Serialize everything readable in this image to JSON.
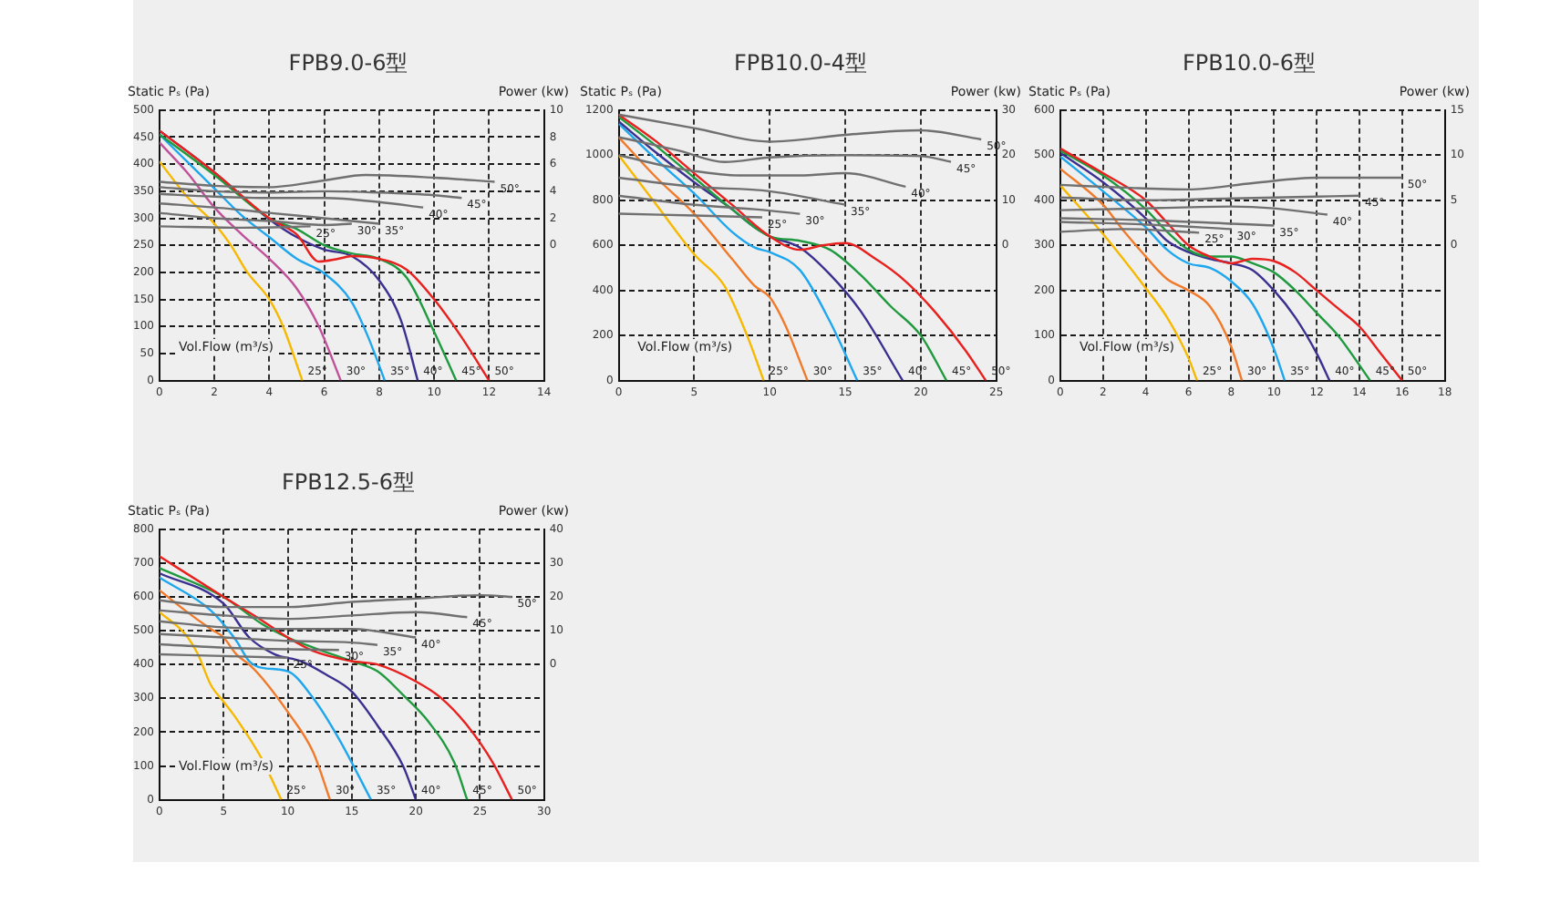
{
  "chart_data": [
    {
      "type": "line",
      "title": "FPB9.0-6型",
      "xlabel": "Vol.Flow (m³/s)",
      "ylabel": "Static Pₛ (Pa)",
      "y2label": "Power (kw)",
      "xlim": [
        0,
        14
      ],
      "xticks": [
        0,
        2,
        4,
        6,
        8,
        10,
        12,
        14
      ],
      "ylim": [
        0,
        500
      ],
      "yticks": [
        0,
        50,
        100,
        150,
        200,
        250,
        300,
        350,
        400,
        450,
        500
      ],
      "y2lim": [
        -10,
        10
      ],
      "y2ticks": [
        0,
        2,
        4,
        6,
        8,
        10
      ],
      "grid": true,
      "series": [
        {
          "name": "25°",
          "color": "#f7b800",
          "x": [
            0,
            1,
            2,
            2.6,
            3.2,
            4,
            4.5,
            5.2
          ],
          "values": [
            405,
            340,
            290,
            250,
            200,
            150,
            100,
            0
          ]
        },
        {
          "name": "30°",
          "color": "#c0509a",
          "x": [
            0,
            1,
            2,
            3,
            4,
            5,
            5.8,
            6.6
          ],
          "values": [
            440,
            385,
            320,
            270,
            225,
            170,
            100,
            0
          ]
        },
        {
          "name": "35°",
          "color": "#1ea6ee",
          "x": [
            0,
            1,
            2,
            3,
            4,
            5,
            6,
            7,
            7.6,
            8.2
          ],
          "values": [
            455,
            405,
            355,
            305,
            265,
            225,
            198,
            145,
            80,
            0
          ]
        },
        {
          "name": "40°",
          "color": "#3a3090",
          "x": [
            0,
            2,
            4,
            5,
            6,
            7,
            8,
            8.8,
            9.4
          ],
          "values": [
            462,
            385,
            298,
            265,
            242,
            230,
            185,
            110,
            0
          ]
        },
        {
          "name": "45°",
          "color": "#1f9a3f",
          "x": [
            0,
            2,
            4,
            5,
            6,
            7,
            8,
            9,
            10,
            10.8
          ],
          "values": [
            455,
            380,
            300,
            280,
            250,
            235,
            225,
            190,
            90,
            0
          ]
        },
        {
          "name": "50°",
          "color": "#e8201e",
          "x": [
            0,
            2,
            4,
            5,
            5.8,
            6.5,
            7,
            8,
            9,
            10,
            11,
            12
          ],
          "values": [
            462,
            385,
            300,
            270,
            220,
            225,
            230,
            225,
            205,
            150,
            80,
            0
          ]
        },
        {
          "name": "25°",
          "color": "#707070",
          "axis": "y2",
          "x": [
            0,
            3,
            5.5
          ],
          "values": [
            1.4,
            1.3,
            1.4
          ]
        },
        {
          "name": "30°",
          "color": "#707070",
          "axis": "y2",
          "x": [
            0,
            2,
            4,
            6,
            7
          ],
          "values": [
            2.4,
            2.0,
            1.8,
            1.5,
            1.6
          ]
        },
        {
          "name": "35°",
          "color": "#707070",
          "axis": "y2",
          "x": [
            0,
            2,
            4,
            6,
            8
          ],
          "values": [
            3.1,
            2.8,
            2.4,
            2.0,
            1.6
          ]
        },
        {
          "name": "40°",
          "color": "#707070",
          "axis": "y2",
          "x": [
            0,
            2,
            4,
            6,
            8,
            9.6
          ],
          "values": [
            3.8,
            3.6,
            3.5,
            3.5,
            3.2,
            2.8
          ]
        },
        {
          "name": "45°",
          "color": "#707070",
          "axis": "y2",
          "x": [
            0,
            2,
            4,
            6,
            8,
            10,
            11
          ],
          "values": [
            4.3,
            4.0,
            3.9,
            4.0,
            3.9,
            3.7,
            3.5
          ]
        },
        {
          "name": "50°",
          "color": "#707070",
          "axis": "y2",
          "x": [
            0,
            2,
            4,
            6,
            7.5,
            10,
            12.2
          ],
          "values": [
            4.7,
            4.4,
            4.3,
            4.8,
            5.2,
            5.0,
            4.7
          ]
        }
      ]
    },
    {
      "type": "line",
      "title": "FPB10.0-4型",
      "xlabel": "Vol.Flow (m³/s)",
      "ylabel": "Static Pₛ (Pa)",
      "y2label": "Power (kw)",
      "xlim": [
        0,
        25
      ],
      "xticks": [
        0,
        5,
        10,
        15,
        20,
        25
      ],
      "ylim": [
        0,
        1200
      ],
      "yticks": [
        0,
        200,
        400,
        600,
        800,
        1000,
        1200
      ],
      "y2lim": [
        -30,
        30
      ],
      "y2ticks": [
        0,
        10,
        20,
        30
      ],
      "grid": true,
      "series": [
        {
          "name": "25°",
          "color": "#f7b800",
          "x": [
            0,
            2.5,
            5,
            7,
            8.5,
            9.6
          ],
          "values": [
            1000,
            780,
            560,
            420,
            200,
            0
          ]
        },
        {
          "name": "30°",
          "color": "#f07a2a",
          "x": [
            0,
            2.5,
            5,
            7.5,
            9,
            10,
            11,
            12.5
          ],
          "values": [
            1080,
            900,
            740,
            540,
            420,
            370,
            250,
            0
          ]
        },
        {
          "name": "35°",
          "color": "#1ea6ee",
          "x": [
            0,
            2.5,
            5,
            7.5,
            9,
            10,
            12,
            14,
            15.8
          ],
          "values": [
            1140,
            980,
            830,
            660,
            590,
            570,
            490,
            260,
            0
          ]
        },
        {
          "name": "40°",
          "color": "#3a3090",
          "x": [
            0,
            2.5,
            5,
            7.5,
            9,
            10,
            12,
            14,
            16,
            18.8
          ],
          "values": [
            1150,
            1010,
            880,
            760,
            680,
            640,
            590,
            470,
            310,
            0
          ]
        },
        {
          "name": "45°",
          "color": "#1f9a3f",
          "x": [
            0,
            2.5,
            5,
            7.5,
            10,
            12,
            14,
            16,
            18,
            20,
            21.7
          ],
          "values": [
            1170,
            1040,
            900,
            760,
            640,
            620,
            580,
            470,
            330,
            200,
            0
          ]
        },
        {
          "name": "50°",
          "color": "#e8201e",
          "x": [
            0,
            2.5,
            5,
            7.5,
            10,
            12,
            13.5,
            15,
            17,
            19,
            21,
            23,
            24.3
          ],
          "values": [
            1180,
            1060,
            920,
            780,
            640,
            580,
            600,
            610,
            540,
            440,
            300,
            130,
            0
          ]
        },
        {
          "name": "25°",
          "color": "#707070",
          "axis": "y2",
          "x": [
            0,
            5,
            9.5
          ],
          "values": [
            7,
            6.6,
            6.2
          ]
        },
        {
          "name": "30°",
          "color": "#707070",
          "axis": "y2",
          "x": [
            0,
            5,
            9,
            12
          ],
          "values": [
            11,
            9,
            8,
            7
          ]
        },
        {
          "name": "35°",
          "color": "#707070",
          "axis": "y2",
          "x": [
            0,
            5,
            10,
            15
          ],
          "values": [
            15,
            13,
            12,
            9
          ]
        },
        {
          "name": "40°",
          "color": "#707070",
          "axis": "y2",
          "x": [
            0,
            4,
            8,
            12,
            15,
            19
          ],
          "values": [
            20,
            17,
            15.5,
            15.5,
            16,
            13
          ]
        },
        {
          "name": "45°",
          "color": "#707070",
          "axis": "y2",
          "x": [
            0,
            4,
            7,
            10,
            15,
            20,
            22
          ],
          "values": [
            24,
            21,
            18.5,
            19.5,
            20,
            19.8,
            18.5
          ]
        },
        {
          "name": "50°",
          "color": "#707070",
          "axis": "y2",
          "x": [
            0,
            5,
            10,
            15,
            20,
            24
          ],
          "values": [
            29,
            26,
            23,
            24.5,
            25.5,
            23.5
          ]
        }
      ]
    },
    {
      "type": "line",
      "title": "FPB10.0-6型",
      "xlabel": "Vol.Flow (m³/s)",
      "ylabel": "Static Pₛ (Pa)",
      "y2label": "Power (kw)",
      "xlim": [
        0,
        18
      ],
      "xticks": [
        0,
        2,
        4,
        6,
        8,
        10,
        12,
        14,
        16,
        18
      ],
      "ylim": [
        0,
        600
      ],
      "yticks": [
        0,
        100,
        200,
        300,
        400,
        500,
        600
      ],
      "y2lim": [
        -15,
        15
      ],
      "y2ticks": [
        0,
        5,
        10,
        15
      ],
      "grid": true,
      "series": [
        {
          "name": "25°",
          "color": "#f7b800",
          "x": [
            0,
            2,
            4,
            5,
            6,
            6.4
          ],
          "values": [
            433,
            325,
            205,
            140,
            50,
            0
          ]
        },
        {
          "name": "30°",
          "color": "#f07a2a",
          "x": [
            0,
            2,
            3,
            4,
            5,
            6,
            7,
            8,
            8.5
          ],
          "values": [
            470,
            390,
            330,
            275,
            225,
            200,
            165,
            75,
            0
          ]
        },
        {
          "name": "35°",
          "color": "#1ea6ee",
          "x": [
            0,
            2,
            4,
            5,
            6,
            7,
            8,
            9,
            10,
            10.5
          ],
          "values": [
            497,
            420,
            340,
            290,
            260,
            250,
            220,
            170,
            70,
            0
          ]
        },
        {
          "name": "40°",
          "color": "#3a3090",
          "x": [
            0,
            2,
            4,
            5,
            6,
            7,
            8,
            9,
            10,
            11,
            12,
            12.6
          ],
          "values": [
            505,
            440,
            360,
            310,
            285,
            270,
            260,
            245,
            200,
            140,
            60,
            0
          ]
        },
        {
          "name": "45°",
          "color": "#1f9a3f",
          "x": [
            0,
            2,
            4,
            5,
            6,
            7,
            8,
            9,
            10,
            11,
            12,
            13,
            14.5
          ],
          "values": [
            510,
            455,
            380,
            330,
            290,
            275,
            275,
            260,
            240,
            200,
            150,
            100,
            0
          ]
        },
        {
          "name": "50°",
          "color": "#e8201e",
          "x": [
            0,
            2,
            4,
            5,
            6,
            7,
            8,
            9,
            10,
            11,
            12,
            13,
            14,
            15,
            16
          ],
          "values": [
            515,
            460,
            400,
            350,
            300,
            275,
            260,
            270,
            265,
            240,
            200,
            160,
            120,
            60,
            0
          ]
        },
        {
          "name": "25°",
          "color": "#707070",
          "axis": "y2",
          "x": [
            0,
            3,
            6.5
          ],
          "values": [
            1.5,
            1.8,
            1.4
          ]
        },
        {
          "name": "30°",
          "color": "#707070",
          "axis": "y2",
          "x": [
            0,
            4,
            8
          ],
          "values": [
            2.6,
            2.3,
            1.8
          ]
        },
        {
          "name": "35°",
          "color": "#707070",
          "axis": "y2",
          "x": [
            0,
            4,
            8,
            10
          ],
          "values": [
            3.0,
            2.8,
            2.4,
            2.2
          ]
        },
        {
          "name": "40°",
          "color": "#707070",
          "axis": "y2",
          "x": [
            0,
            4,
            8,
            10,
            12.5
          ],
          "values": [
            3.9,
            4.1,
            4.3,
            4.1,
            3.4
          ]
        },
        {
          "name": "45°",
          "color": "#707070",
          "axis": "y2",
          "x": [
            0,
            4,
            8,
            12,
            14
          ],
          "values": [
            5.3,
            5.0,
            5.2,
            5.4,
            5.5
          ]
        },
        {
          "name": "50°",
          "color": "#707070",
          "axis": "y2",
          "x": [
            0,
            3,
            6,
            9,
            12,
            16
          ],
          "values": [
            6.7,
            6.4,
            6.2,
            6.9,
            7.5,
            7.5
          ]
        }
      ]
    },
    {
      "type": "line",
      "title": "FPB12.5-6型",
      "xlabel": "Vol.Flow (m³/s)",
      "ylabel": "Static Pₛ (Pa)",
      "y2label": "Power (kw)",
      "xlim": [
        0,
        30
      ],
      "xticks": [
        0,
        5,
        10,
        15,
        20,
        25,
        30
      ],
      "ylim": [
        0,
        800
      ],
      "yticks": [
        0,
        100,
        200,
        300,
        400,
        500,
        600,
        700,
        800
      ],
      "y2lim": [
        -40,
        40
      ],
      "y2ticks": [
        0,
        10,
        20,
        30,
        40
      ],
      "grid": true,
      "series": [
        {
          "name": "25°",
          "color": "#f7b800",
          "x": [
            0,
            2,
            3,
            4,
            5,
            6,
            8,
            9.5
          ],
          "values": [
            555,
            490,
            430,
            340,
            290,
            240,
            120,
            0
          ]
        },
        {
          "name": "30°",
          "color": "#f07a2a",
          "x": [
            0,
            2,
            4,
            5,
            6,
            7,
            8,
            10,
            12,
            13.3
          ],
          "values": [
            620,
            560,
            505,
            480,
            430,
            400,
            360,
            260,
            140,
            0
          ]
        },
        {
          "name": "35°",
          "color": "#1ea6ee",
          "x": [
            0,
            4,
            6,
            7,
            8,
            10,
            12,
            14,
            16.5
          ],
          "values": [
            657,
            560,
            470,
            410,
            390,
            380,
            300,
            180,
            0
          ]
        },
        {
          "name": "40°",
          "color": "#3a3090",
          "x": [
            0,
            5,
            7,
            9,
            11,
            13,
            15,
            17,
            19,
            20
          ],
          "values": [
            670,
            580,
            480,
            430,
            410,
            370,
            320,
            220,
            100,
            0
          ]
        },
        {
          "name": "45°",
          "color": "#1f9a3f",
          "x": [
            0,
            5,
            8,
            10,
            12,
            15,
            17,
            19,
            21,
            23,
            24
          ],
          "values": [
            685,
            600,
            520,
            480,
            450,
            410,
            380,
            310,
            230,
            110,
            0
          ]
        },
        {
          "name": "50°",
          "color": "#e8201e",
          "x": [
            0,
            5,
            8,
            10,
            12,
            15,
            17,
            20,
            22,
            24,
            26,
            27.5
          ],
          "values": [
            720,
            600,
            530,
            480,
            440,
            410,
            400,
            350,
            300,
            220,
            110,
            0
          ]
        },
        {
          "name": "25°",
          "color": "#707070",
          "axis": "y2",
          "x": [
            0,
            5,
            10
          ],
          "values": [
            3,
            2.5,
            2
          ]
        },
        {
          "name": "30°",
          "color": "#707070",
          "axis": "y2",
          "x": [
            0,
            5,
            10,
            14
          ],
          "values": [
            6,
            5,
            4.5,
            4.3
          ]
        },
        {
          "name": "35°",
          "color": "#707070",
          "axis": "y2",
          "x": [
            0,
            5,
            10,
            15,
            17
          ],
          "values": [
            9,
            8,
            7,
            6.5,
            5.8
          ]
        },
        {
          "name": "40°",
          "color": "#707070",
          "axis": "y2",
          "x": [
            0,
            5,
            10,
            15,
            20
          ],
          "values": [
            12.8,
            11,
            10.5,
            10.5,
            8
          ]
        },
        {
          "name": "45°",
          "color": "#707070",
          "axis": "y2",
          "x": [
            0,
            5,
            10,
            15,
            20,
            24
          ],
          "values": [
            16,
            14.5,
            13.5,
            14.5,
            15.5,
            14
          ]
        },
        {
          "name": "50°",
          "color": "#707070",
          "axis": "y2",
          "x": [
            0,
            5,
            10,
            15,
            20,
            25,
            27.5
          ],
          "values": [
            19,
            17,
            17,
            18.5,
            19.5,
            20.5,
            20
          ]
        }
      ]
    }
  ]
}
